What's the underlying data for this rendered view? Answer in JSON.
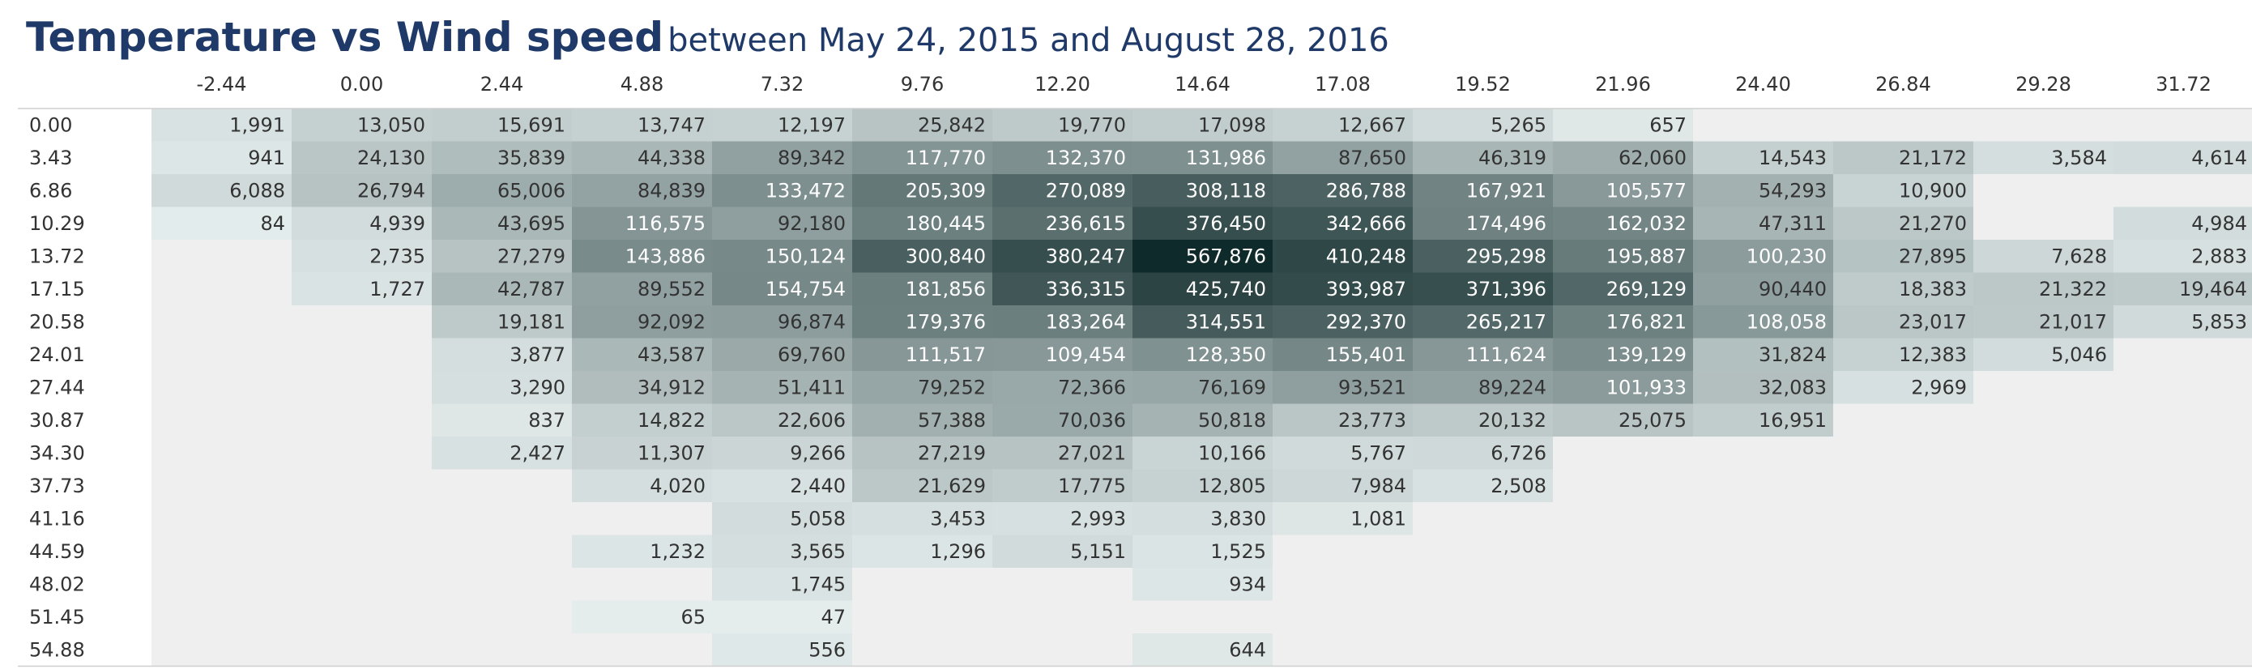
{
  "title": {
    "main": "Temperature vs Wind speed",
    "sub": "between May 24, 2015 and August 28, 2016"
  },
  "colors": {
    "low": "#e6eeee",
    "high": "#0f2a2a",
    "background": "#efefef",
    "title": "#1f3a68"
  },
  "chart_data": {
    "type": "heatmap",
    "title": "Temperature vs Wind speed between May 24, 2015 and August 28, 2016",
    "x_categories": [
      "-2.44",
      "0.00",
      "2.44",
      "4.88",
      "7.32",
      "9.76",
      "12.20",
      "14.64",
      "17.08",
      "19.52",
      "21.96",
      "24.40",
      "26.84",
      "29.28",
      "31.72"
    ],
    "y_categories": [
      "0.00",
      "3.43",
      "6.86",
      "10.29",
      "13.72",
      "17.15",
      "20.58",
      "24.01",
      "27.44",
      "30.87",
      "34.30",
      "37.73",
      "41.16",
      "44.59",
      "48.02",
      "51.45",
      "54.88"
    ],
    "values": [
      [
        1991,
        13050,
        15691,
        13747,
        12197,
        25842,
        19770,
        17098,
        12667,
        5265,
        657,
        null,
        null,
        null,
        null
      ],
      [
        941,
        24130,
        35839,
        44338,
        89342,
        117770,
        132370,
        131986,
        87650,
        46319,
        62060,
        14543,
        21172,
        3584,
        4614
      ],
      [
        6088,
        26794,
        65006,
        84839,
        133472,
        205309,
        270089,
        308118,
        286788,
        167921,
        105577,
        54293,
        10900,
        null,
        null
      ],
      [
        84,
        4939,
        43695,
        116575,
        92180,
        180445,
        236615,
        376450,
        342666,
        174496,
        162032,
        47311,
        21270,
        null,
        4984
      ],
      [
        null,
        2735,
        27279,
        143886,
        150124,
        300840,
        380247,
        567876,
        410248,
        295298,
        195887,
        100230,
        27895,
        7628,
        2883
      ],
      [
        null,
        1727,
        42787,
        89552,
        154754,
        181856,
        336315,
        425740,
        393987,
        371396,
        269129,
        90440,
        18383,
        21322,
        19464
      ],
      [
        null,
        null,
        19181,
        92092,
        96874,
        179376,
        183264,
        314551,
        292370,
        265217,
        176821,
        108058,
        23017,
        21017,
        5853
      ],
      [
        null,
        null,
        3877,
        43587,
        69760,
        111517,
        109454,
        128350,
        155401,
        111624,
        139129,
        31824,
        12383,
        5046,
        null
      ],
      [
        null,
        null,
        3290,
        34912,
        51411,
        79252,
        72366,
        76169,
        93521,
        89224,
        101933,
        32083,
        2969,
        null,
        null
      ],
      [
        null,
        null,
        837,
        14822,
        22606,
        57388,
        70036,
        50818,
        23773,
        20132,
        25075,
        16951,
        null,
        null,
        null
      ],
      [
        null,
        null,
        2427,
        11307,
        9266,
        27219,
        27021,
        10166,
        5767,
        6726,
        null,
        null,
        null,
        null,
        null
      ],
      [
        null,
        null,
        null,
        4020,
        2440,
        21629,
        17775,
        12805,
        7984,
        2508,
        null,
        null,
        null,
        null,
        null
      ],
      [
        null,
        null,
        null,
        null,
        5058,
        3453,
        2993,
        3830,
        1081,
        null,
        null,
        null,
        null,
        null,
        null
      ],
      [
        null,
        null,
        null,
        1232,
        3565,
        1296,
        5151,
        1525,
        null,
        null,
        null,
        null,
        null,
        null,
        null
      ],
      [
        null,
        null,
        null,
        null,
        1745,
        null,
        null,
        934,
        null,
        null,
        null,
        null,
        null,
        null,
        null
      ],
      [
        null,
        null,
        null,
        65,
        47,
        null,
        null,
        null,
        null,
        null,
        null,
        null,
        null,
        null,
        null
      ],
      [
        null,
        null,
        null,
        null,
        556,
        null,
        null,
        644,
        null,
        null,
        null,
        null,
        null,
        null,
        null
      ]
    ],
    "value_range": [
      47,
      567876
    ],
    "grid": false,
    "legend": "none"
  }
}
